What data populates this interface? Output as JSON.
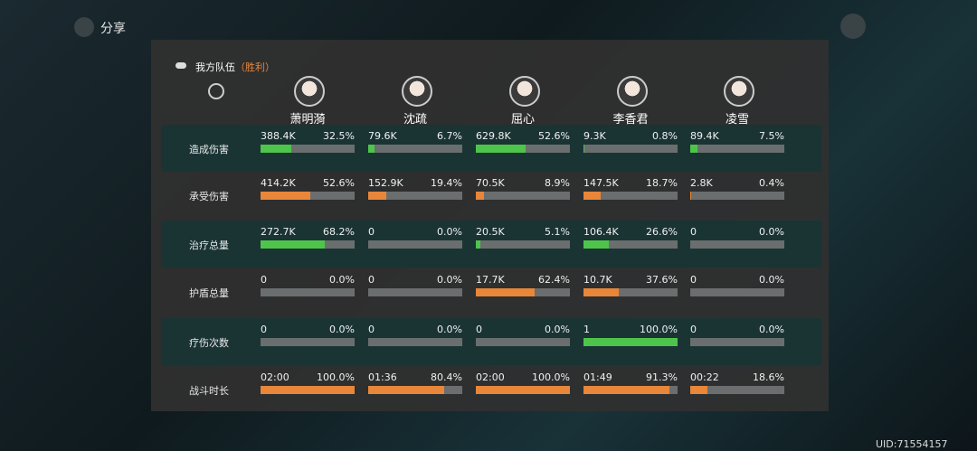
{
  "header": {
    "share": "分享",
    "team": "我方队伍",
    "result": "（胜利）"
  },
  "players": [
    "萧明漪",
    "沈疏",
    "屈心",
    "李香君",
    "凌雪"
  ],
  "rows": [
    {
      "label": "造成伤害",
      "bar_color": "#4ec54a",
      "cells": [
        {
          "value": "388.4K",
          "pct": 32.5,
          "pct_label": "32.5%"
        },
        {
          "value": "79.6K",
          "pct": 6.7,
          "pct_label": "6.7%"
        },
        {
          "value": "629.8K",
          "pct": 52.6,
          "pct_label": "52.6%"
        },
        {
          "value": "9.3K",
          "pct": 0.8,
          "pct_label": "0.8%"
        },
        {
          "value": "89.4K",
          "pct": 7.5,
          "pct_label": "7.5%"
        }
      ]
    },
    {
      "label": "承受伤害",
      "bar_color": "#e8863a",
      "cells": [
        {
          "value": "414.2K",
          "pct": 52.6,
          "pct_label": "52.6%"
        },
        {
          "value": "152.9K",
          "pct": 19.4,
          "pct_label": "19.4%"
        },
        {
          "value": "70.5K",
          "pct": 8.9,
          "pct_label": "8.9%"
        },
        {
          "value": "147.5K",
          "pct": 18.7,
          "pct_label": "18.7%"
        },
        {
          "value": "2.8K",
          "pct": 0.4,
          "pct_label": "0.4%"
        }
      ]
    },
    {
      "label": "治疗总量",
      "bar_color": "#4ec54a",
      "cells": [
        {
          "value": "272.7K",
          "pct": 68.2,
          "pct_label": "68.2%"
        },
        {
          "value": "0",
          "pct": 0.0,
          "pct_label": "0.0%"
        },
        {
          "value": "20.5K",
          "pct": 5.1,
          "pct_label": "5.1%"
        },
        {
          "value": "106.4K",
          "pct": 26.6,
          "pct_label": "26.6%"
        },
        {
          "value": "0",
          "pct": 0.0,
          "pct_label": "0.0%"
        }
      ]
    },
    {
      "label": "护盾总量",
      "bar_color": "#e8863a",
      "cells": [
        {
          "value": "0",
          "pct": 0.0,
          "pct_label": "0.0%"
        },
        {
          "value": "0",
          "pct": 0.0,
          "pct_label": "0.0%"
        },
        {
          "value": "17.7K",
          "pct": 62.4,
          "pct_label": "62.4%"
        },
        {
          "value": "10.7K",
          "pct": 37.6,
          "pct_label": "37.6%"
        },
        {
          "value": "0",
          "pct": 0.0,
          "pct_label": "0.0%"
        }
      ]
    },
    {
      "label": "疗伤次数",
      "bar_color": "#4ec54a",
      "cells": [
        {
          "value": "0",
          "pct": 0.0,
          "pct_label": "0.0%"
        },
        {
          "value": "0",
          "pct": 0.0,
          "pct_label": "0.0%"
        },
        {
          "value": "0",
          "pct": 0.0,
          "pct_label": "0.0%"
        },
        {
          "value": "1",
          "pct": 100.0,
          "pct_label": "100.0%"
        },
        {
          "value": "0",
          "pct": 0.0,
          "pct_label": "0.0%"
        }
      ]
    },
    {
      "label": "战斗时长",
      "bar_color": "#e8863a",
      "cells": [
        {
          "value": "02:00",
          "pct": 100.0,
          "pct_label": "100.0%"
        },
        {
          "value": "01:36",
          "pct": 80.4,
          "pct_label": "80.4%"
        },
        {
          "value": "02:00",
          "pct": 100.0,
          "pct_label": "100.0%"
        },
        {
          "value": "01:49",
          "pct": 91.3,
          "pct_label": "91.3%"
        },
        {
          "value": "00:22",
          "pct": 18.6,
          "pct_label": "18.6%"
        }
      ]
    }
  ],
  "uid": "UID:71554157"
}
